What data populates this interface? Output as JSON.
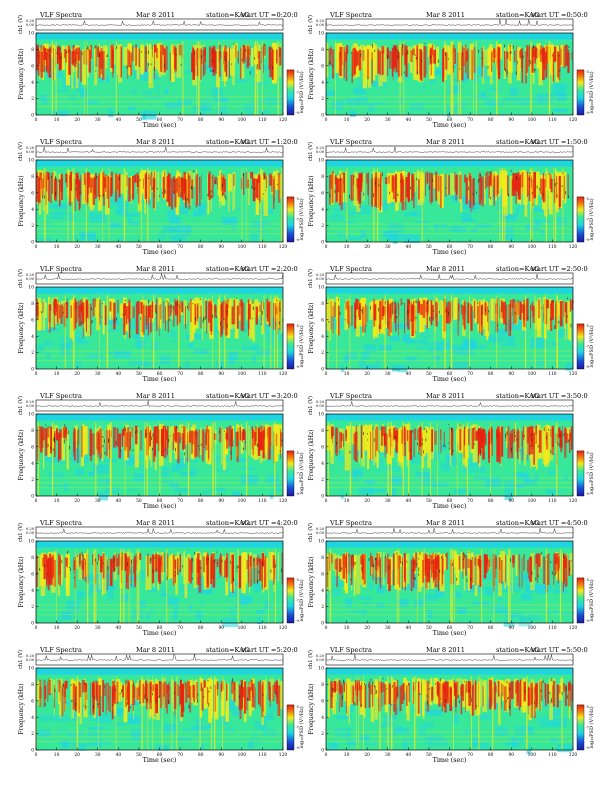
{
  "page": {
    "common": {
      "title_left": "VLF Spectra",
      "date": "Mar 8 2011",
      "station": "station=KAG",
      "trace_ylabel": "ch1 (V)",
      "trace_ticks": [
        "0.00",
        "0.20",
        "0.00",
        "0.20"
      ],
      "spec_ylabel": "Frequency (kHz)",
      "spec_yticks": [
        "0",
        "2",
        "4",
        "6",
        "8",
        "10"
      ],
      "xlabel": "Time (sec)",
      "xticks": [
        "0",
        "10",
        "20",
        "30",
        "40",
        "50",
        "60",
        "70",
        "80",
        "90",
        "100",
        "110",
        "120"
      ],
      "cbar_label": "log₁₀PSD (V²/Hz)",
      "cbar_ticks": [
        "-5",
        "-7",
        "-9"
      ],
      "colors": {
        "low": "#1fd6e0",
        "mid": "#38e89a",
        "high": "#f2ea1a",
        "peak": "#e82010",
        "band": "#1fd6e0"
      }
    }
  },
  "chart_data": [
    {
      "type": "heatmap",
      "title": "VLF Spectra",
      "date": "Mar 8 2011",
      "station": "station=KAG",
      "start": "start UT =0:20:0",
      "xlabel": "Time (sec)",
      "ylabel": "Frequency (kHz)",
      "xlim": [
        0,
        120
      ],
      "ylim": [
        0,
        10
      ],
      "colorbar_label": "log10PSD (V^2/Hz)",
      "colorbar_range": [
        -9,
        -5
      ]
    },
    {
      "type": "heatmap",
      "title": "VLF Spectra",
      "date": "Mar 8 2011",
      "station": "station=KAG",
      "start": "start UT =0:50:0",
      "xlabel": "Time (sec)",
      "ylabel": "Frequency (kHz)",
      "xlim": [
        0,
        120
      ],
      "ylim": [
        0,
        10
      ],
      "colorbar_label": "log10PSD (V^2/Hz)",
      "colorbar_range": [
        -9,
        -5
      ]
    },
    {
      "type": "heatmap",
      "title": "VLF Spectra",
      "date": "Mar 8 2011",
      "station": "station=KAG",
      "start": "start UT =1:20:0",
      "xlabel": "Time (sec)",
      "ylabel": "Frequency (kHz)",
      "xlim": [
        0,
        120
      ],
      "ylim": [
        0,
        10
      ],
      "colorbar_label": "log10PSD (V^2/Hz)",
      "colorbar_range": [
        -9,
        -5
      ]
    },
    {
      "type": "heatmap",
      "title": "VLF Spectra",
      "date": "Mar 8 2011",
      "station": "station=KAG",
      "start": "start UT =1:50:0",
      "xlabel": "Time (sec)",
      "ylabel": "Frequency (kHz)",
      "xlim": [
        0,
        120
      ],
      "ylim": [
        0,
        10
      ],
      "colorbar_label": "log10PSD (V^2/Hz)",
      "colorbar_range": [
        -9,
        -5
      ]
    },
    {
      "type": "heatmap",
      "title": "VLF Spectra",
      "date": "Mar 8 2011",
      "station": "station=KAG",
      "start": "start UT =2:20:0",
      "xlabel": "Time (sec)",
      "ylabel": "Frequency (kHz)",
      "xlim": [
        0,
        120
      ],
      "ylim": [
        0,
        10
      ],
      "colorbar_label": "log10PSD (V^2/Hz)",
      "colorbar_range": [
        -9,
        -5
      ]
    },
    {
      "type": "heatmap",
      "title": "VLF Spectra",
      "date": "Mar 8 2011",
      "station": "station=KAG",
      "start": "start UT =2:50:0",
      "xlabel": "Time (sec)",
      "ylabel": "Frequency (kHz)",
      "xlim": [
        0,
        120
      ],
      "ylim": [
        0,
        10
      ],
      "colorbar_label": "log10PSD (V^2/Hz)",
      "colorbar_range": [
        -9,
        -5
      ]
    },
    {
      "type": "heatmap",
      "title": "VLF Spectra",
      "date": "Mar 8 2011",
      "station": "station=KAG",
      "start": "start UT =3:20:0",
      "xlabel": "Time (sec)",
      "ylabel": "Frequency (kHz)",
      "xlim": [
        0,
        120
      ],
      "ylim": [
        0,
        10
      ],
      "colorbar_label": "log10PSD (V^2/Hz)",
      "colorbar_range": [
        -9,
        -5
      ]
    },
    {
      "type": "heatmap",
      "title": "VLF Spectra",
      "date": "Mar 8 2011",
      "station": "station=KAG",
      "start": "start UT =3:50:0",
      "xlabel": "Time (sec)",
      "ylabel": "Frequency (kHz)",
      "xlim": [
        0,
        120
      ],
      "ylim": [
        0,
        10
      ],
      "colorbar_label": "log10PSD (V^2/Hz)",
      "colorbar_range": [
        -9,
        -5
      ]
    },
    {
      "type": "heatmap",
      "title": "VLF Spectra",
      "date": "Mar 8 2011",
      "station": "station=KAG",
      "start": "start UT =4:20:0",
      "xlabel": "Time (sec)",
      "ylabel": "Frequency (kHz)",
      "xlim": [
        0,
        120
      ],
      "ylim": [
        0,
        10
      ],
      "colorbar_label": "log10PSD (V^2/Hz)",
      "colorbar_range": [
        -9,
        -5
      ]
    },
    {
      "type": "heatmap",
      "title": "VLF Spectra",
      "date": "Mar 8 2011",
      "station": "station=KAG",
      "start": "start UT =4:50:0",
      "xlabel": "Time (sec)",
      "ylabel": "Frequency (kHz)",
      "xlim": [
        0,
        120
      ],
      "ylim": [
        0,
        10
      ],
      "colorbar_label": "log10PSD (V^2/Hz)",
      "colorbar_range": [
        -9,
        -5
      ]
    },
    {
      "type": "heatmap",
      "title": "VLF Spectra",
      "date": "Mar 8 2011",
      "station": "station=KAG",
      "start": "start UT =5:20:0",
      "xlabel": "Time (sec)",
      "ylabel": "Frequency (kHz)",
      "xlim": [
        0,
        120
      ],
      "ylim": [
        0,
        10
      ],
      "colorbar_label": "log10PSD (V^2/Hz)",
      "colorbar_range": [
        -9,
        -5
      ]
    },
    {
      "type": "heatmap",
      "title": "VLF Spectra",
      "date": "Mar 8 2011",
      "station": "station=KAG",
      "start": "start UT =5:50:0",
      "xlabel": "Time (sec)",
      "ylabel": "Frequency (kHz)",
      "xlim": [
        0,
        120
      ],
      "ylim": [
        0,
        10
      ],
      "colorbar_label": "log10PSD (V^2/Hz)",
      "colorbar_range": [
        -9,
        -5
      ]
    }
  ]
}
